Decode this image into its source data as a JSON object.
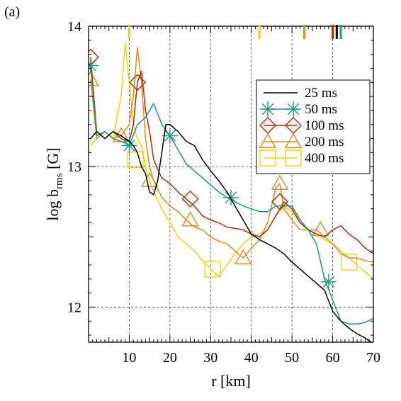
{
  "panel_label": "(a)",
  "chart_data": {
    "type": "line",
    "xlabel": "r [km]",
    "ylabel_main": "log b",
    "ylabel_sub": "rms",
    "ylabel_tail": " [G]",
    "xlim": [
      0,
      70
    ],
    "ylim": [
      11.75,
      14
    ],
    "xticks": [
      10,
      20,
      30,
      40,
      50,
      60,
      70
    ],
    "yticks": [
      12,
      13,
      14
    ],
    "grid": true,
    "legend_position": "upper-right",
    "top_markers": [
      {
        "x": 10,
        "color": "#f2d400"
      },
      {
        "x": 42,
        "color": "#f2d400"
      },
      {
        "x": 53,
        "color": "#e08b1a"
      },
      {
        "x": 60,
        "color": "#b82a00"
      },
      {
        "x": 61,
        "color": "#000000"
      },
      {
        "x": 62,
        "color": "#1a9a7a"
      }
    ],
    "series": [
      {
        "name": "25 ms",
        "color": "#000000",
        "marker": "none",
        "x": [
          0.5,
          2,
          4,
          6,
          8,
          10,
          11,
          12,
          13,
          14,
          15,
          16,
          17,
          18,
          19,
          20,
          22,
          24,
          26,
          28,
          30,
          32,
          34,
          36,
          38,
          40,
          42,
          44,
          46,
          48,
          50,
          52,
          54,
          56,
          58,
          60,
          62,
          64,
          66,
          68,
          70
        ],
        "y": [
          13.2,
          13.25,
          13.2,
          13.25,
          13.22,
          13.18,
          13.15,
          13.1,
          13.0,
          12.95,
          12.82,
          12.8,
          12.9,
          13.1,
          13.3,
          13.3,
          13.25,
          13.18,
          13.15,
          13.05,
          12.97,
          12.9,
          12.82,
          12.72,
          12.62,
          12.52,
          12.48,
          12.45,
          12.42,
          12.38,
          12.32,
          12.27,
          12.22,
          12.17,
          12.12,
          11.97,
          11.9,
          11.85,
          11.81,
          11.78,
          11.74
        ]
      },
      {
        "name": "50 ms",
        "color": "#1a9a7a",
        "marker": "star",
        "x": [
          0.5,
          2,
          4,
          6,
          8,
          10,
          12,
          14,
          16,
          18,
          20,
          22,
          24,
          26,
          28,
          30,
          32,
          34,
          36,
          38,
          40,
          42,
          44,
          46,
          48,
          50,
          52,
          54,
          56,
          58,
          60,
          62,
          64,
          66,
          68,
          70
        ],
        "y": [
          13.72,
          13.22,
          13.25,
          13.2,
          13.18,
          13.15,
          13.3,
          13.35,
          13.45,
          13.3,
          13.22,
          13.12,
          13.02,
          12.97,
          12.92,
          12.87,
          12.82,
          12.78,
          12.75,
          12.72,
          12.7,
          12.68,
          12.68,
          12.72,
          12.72,
          12.72,
          12.62,
          12.55,
          12.45,
          12.2,
          12.05,
          11.9,
          11.88,
          11.88,
          11.89,
          11.92
        ],
        "marker_x": [
          0.5,
          10,
          20,
          35,
          59
        ],
        "marker_y": [
          13.72,
          13.15,
          13.22,
          12.78,
          12.18
        ]
      },
      {
        "name": "100 ms",
        "color": "#b82a00",
        "marker": "diamond",
        "x": [
          0.5,
          2,
          4,
          6,
          8,
          10,
          11,
          12,
          13,
          14,
          15,
          16,
          17,
          18,
          20,
          22,
          24,
          26,
          28,
          30,
          32,
          34,
          36,
          38,
          40,
          42,
          44,
          46,
          48,
          50,
          52,
          54,
          56,
          58,
          60,
          62,
          64,
          66,
          68,
          70
        ],
        "y": [
          13.78,
          13.25,
          13.2,
          13.25,
          13.2,
          13.18,
          13.3,
          13.6,
          13.68,
          13.4,
          13.25,
          13.05,
          12.98,
          12.92,
          12.88,
          12.82,
          12.77,
          12.72,
          12.65,
          12.62,
          12.6,
          12.57,
          12.56,
          12.55,
          12.52,
          12.5,
          12.55,
          12.65,
          12.75,
          12.7,
          12.6,
          12.55,
          12.52,
          12.5,
          12.55,
          12.58,
          12.52,
          12.48,
          12.42,
          12.38
        ],
        "marker_x": [
          0.5,
          12,
          25,
          47
        ],
        "marker_y": [
          13.78,
          13.6,
          12.77,
          12.75
        ]
      },
      {
        "name": "200 ms",
        "color": "#e08b1a",
        "marker": "triangle",
        "x": [
          0.5,
          2,
          4,
          6,
          8,
          10,
          11,
          12,
          13,
          14,
          15,
          16,
          18,
          20,
          22,
          24,
          26,
          28,
          30,
          32,
          34,
          36,
          38,
          40,
          42,
          44,
          46,
          47,
          48,
          50,
          52,
          54,
          56,
          58,
          60,
          62,
          64,
          66,
          68,
          70
        ],
        "y": [
          13.62,
          13.2,
          13.25,
          13.2,
          13.22,
          13.3,
          13.5,
          13.85,
          13.6,
          13.2,
          13.0,
          12.9,
          12.78,
          12.72,
          12.68,
          12.62,
          12.57,
          12.55,
          12.5,
          12.47,
          12.45,
          12.4,
          12.35,
          12.42,
          12.48,
          12.6,
          12.85,
          12.88,
          12.7,
          12.62,
          12.55,
          12.55,
          12.55,
          12.5,
          12.45,
          12.38,
          12.35,
          12.35,
          12.33,
          12.32
        ],
        "marker_x": [
          0.5,
          8,
          15,
          25,
          38,
          47,
          57
        ],
        "marker_y": [
          13.62,
          13.22,
          12.9,
          12.62,
          12.35,
          12.88,
          12.55
        ]
      },
      {
        "name": "400 ms",
        "color": "#f2d400",
        "marker": "square",
        "x": [
          0.5,
          2,
          4,
          6,
          8,
          9,
          10,
          11,
          12,
          13,
          14,
          15,
          16,
          18,
          20,
          22,
          24,
          26,
          28,
          30,
          32,
          34,
          36,
          38,
          40,
          42,
          44,
          46,
          48,
          50,
          52,
          54,
          56,
          58,
          60,
          62,
          64,
          66,
          68,
          70
        ],
        "y": [
          13.15,
          13.2,
          13.25,
          13.2,
          13.5,
          13.88,
          13.6,
          13.3,
          13.2,
          13.15,
          13.0,
          12.9,
          12.82,
          12.7,
          12.6,
          12.5,
          12.45,
          12.4,
          12.33,
          12.27,
          12.22,
          12.3,
          12.38,
          12.45,
          12.5,
          12.52,
          12.55,
          12.65,
          12.72,
          12.68,
          12.6,
          12.55,
          12.52,
          12.48,
          12.45,
          12.4,
          12.35,
          12.3,
          12.25,
          12.2
        ],
        "marker_x": [
          11.5,
          30.5,
          64
        ],
        "marker_y": [
          13.05,
          12.27,
          12.32
        ]
      }
    ]
  }
}
